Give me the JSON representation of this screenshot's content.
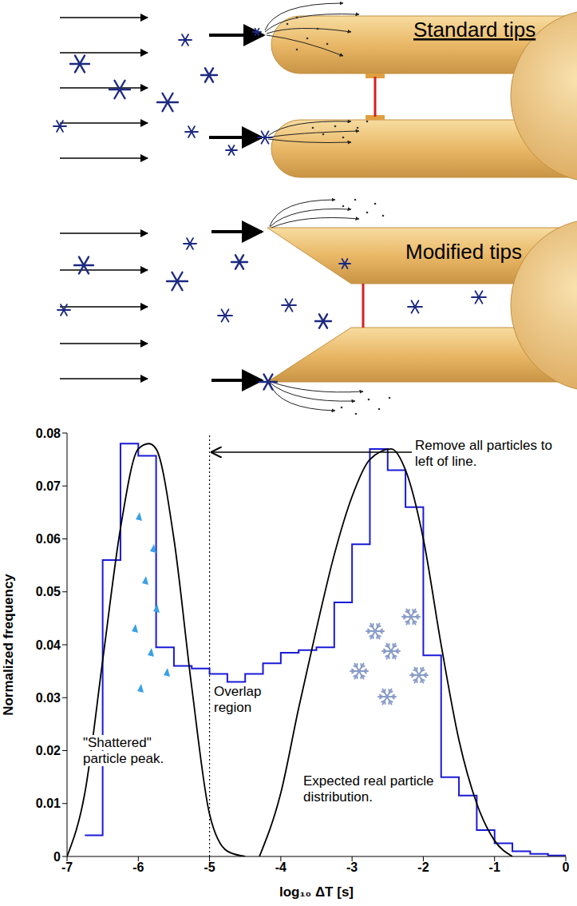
{
  "diagrams": [
    {
      "label": "Standard tips"
    },
    {
      "label": "Modified tips"
    }
  ],
  "chart_data": {
    "type": "histogram",
    "x_label": "log₁₀ ΔT [s]",
    "y_label": "Normalized frequency",
    "bins": [
      -6.75,
      -6.5,
      -6.25,
      -6,
      -5.75,
      -5.5,
      -5.25,
      -5,
      -4.75,
      -4.5,
      -4.25,
      -4,
      -3.75,
      -3.5,
      -3.25,
      -3,
      -2.75,
      -2.5,
      -2.25,
      -2,
      -1.75,
      -1.5,
      -1.25,
      -1,
      -0.75,
      -0.5,
      -0.25,
      0
    ],
    "values": [
      0.004,
      0.056,
      0.078,
      0.0757,
      0.0395,
      0.036,
      0.0355,
      0.0345,
      0.033,
      0.0345,
      0.0365,
      0.0385,
      0.039,
      0.0395,
      0.048,
      0.059,
      0.077,
      0.073,
      0.066,
      0.038,
      0.015,
      0.0115,
      0.005,
      0.0025,
      0.001,
      0.0005,
      0.0002
    ],
    "color": "#1a1ad8",
    "series": [
      {
        "type": "line",
        "color": "#000000",
        "x": [
          -7,
          -6.75,
          -6.5,
          -6.25,
          -6,
          -5.85,
          -5.75,
          -5.5,
          -5.25,
          -5,
          -4.75,
          -4.5
        ],
        "values": [
          0,
          0.012,
          0.037,
          0.062,
          0.077,
          0.078,
          0.077,
          0.06,
          0.032,
          0.008,
          0.001,
          0
        ]
      },
      {
        "type": "line",
        "color": "#000000",
        "x": [
          -4.3,
          -4,
          -3.75,
          -3.5,
          -3.25,
          -3,
          -2.75,
          -2.45,
          -2.25,
          -2,
          -1.75,
          -1.5,
          -1.25,
          -1,
          -0.75
        ],
        "values": [
          0,
          0.012,
          0.028,
          0.043,
          0.057,
          0.068,
          0.075,
          0.077,
          0.073,
          0.06,
          0.04,
          0.022,
          0.01,
          0.003,
          0
        ]
      }
    ],
    "reference_line": {
      "x": -5,
      "line_style": "dotted"
    },
    "annotations": [
      {
        "text": "Remove all particles to left of line."
      },
      {
        "text": "Overlap region"
      },
      {
        "text": "\"Shattered\" particle peak."
      },
      {
        "text": "Expected real particle distribution."
      }
    ],
    "xlim": [
      -7,
      0
    ],
    "xticks": [
      -7,
      -6,
      -5,
      -4,
      -3,
      -2,
      -1,
      0
    ],
    "ylim": [
      0,
      0.08
    ],
    "yticks": [
      0,
      0.01,
      0.02,
      0.03,
      0.04,
      0.05,
      0.06,
      0.07,
      0.08
    ],
    "grid": false
  }
}
